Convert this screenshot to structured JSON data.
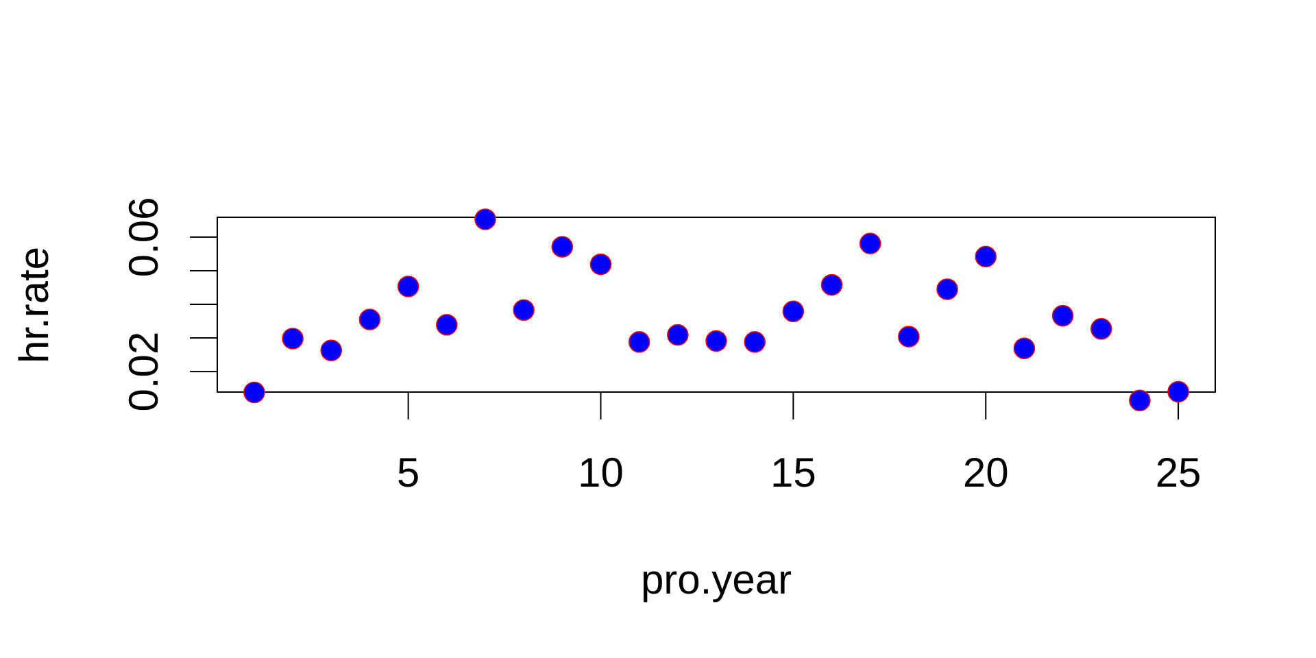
{
  "chart_data": {
    "type": "scatter",
    "xlabel": "pro.year",
    "ylabel": "hr.rate",
    "x_ticks": [
      5,
      10,
      15,
      20,
      25
    ],
    "y_ticks": [
      0.02,
      0.03,
      0.04,
      0.05,
      0.06
    ],
    "y_tick_labels": [
      "0.02",
      "",
      "",
      "",
      "0.06"
    ],
    "xlim": [
      0.04,
      25.96
    ],
    "ylim": [
      0.0139,
      0.0659
    ],
    "marker_fill": "#0000ff",
    "marker_stroke": "#ff0000",
    "x": [
      1,
      2,
      3,
      4,
      5,
      6,
      7,
      8,
      9,
      10,
      11,
      12,
      13,
      14,
      15,
      16,
      17,
      18,
      19,
      20,
      21,
      22,
      23,
      24,
      25
    ],
    "y": [
      0.0138,
      0.0298,
      0.0263,
      0.0355,
      0.0453,
      0.0339,
      0.0653,
      0.0383,
      0.0571,
      0.0519,
      0.0288,
      0.0309,
      0.0291,
      0.0288,
      0.0379,
      0.0458,
      0.0581,
      0.0304,
      0.0445,
      0.0542,
      0.0269,
      0.0366,
      0.0327,
      0.0114,
      0.014
    ]
  }
}
